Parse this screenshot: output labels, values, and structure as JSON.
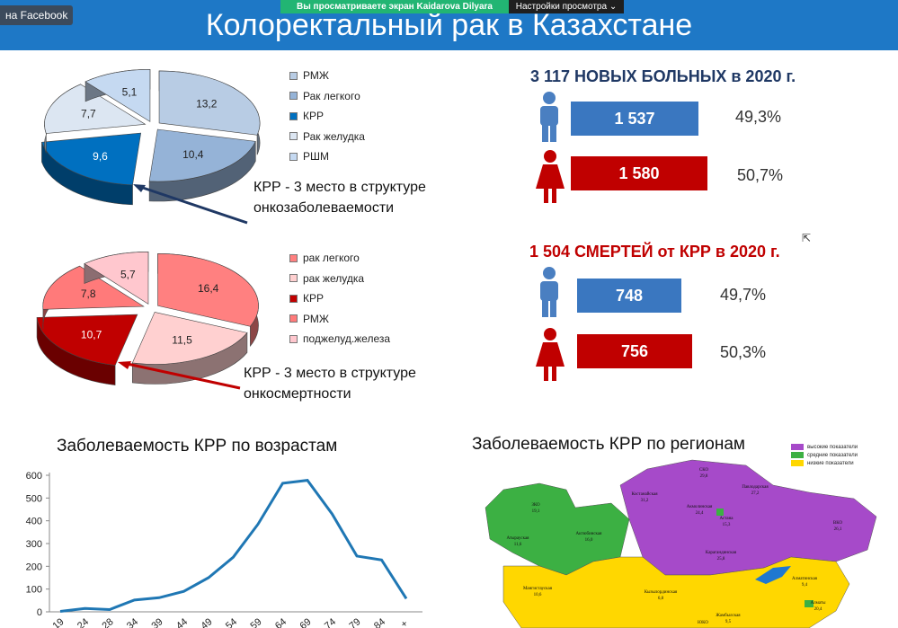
{
  "overlay": {
    "facebook_label": "на Facebook",
    "share_banner": "Вы просматриваете экран Kaidarova Dilyara",
    "view_settings": "Настройки просмотра"
  },
  "slide": {
    "title": "Колоректальный рак в Казахстане"
  },
  "incidence_pie": {
    "slices": [
      {
        "label": "РМЖ",
        "value": 13.2,
        "color": "#b8cce4"
      },
      {
        "label": "Рак легкого",
        "value": 10.4,
        "color": "#95b3d7"
      },
      {
        "label": "КРР",
        "value": 9.6,
        "color": "#0070c0"
      },
      {
        "label": "Рак желудка",
        "value": 7.7,
        "color": "#dce6f2"
      },
      {
        "label": "РШМ",
        "value": 5.1,
        "color": "#c5d9f1"
      }
    ],
    "note_line1": "КРР - 3 место в структуре",
    "note_line2": "онкозаболеваемости",
    "arrow_color": "#1f3864"
  },
  "mortality_pie": {
    "slices": [
      {
        "label": "рак легкого",
        "value": 16.4,
        "color": "#ff8080"
      },
      {
        "label": "рак желудка",
        "value": 11.5,
        "color": "#ffd0d0"
      },
      {
        "label": "КРР",
        "value": 10.7,
        "color": "#c00000"
      },
      {
        "label": "РМЖ",
        "value": 7.8,
        "color": "#ff7a7a"
      },
      {
        "label": "поджелуд.железа",
        "value": 5.7,
        "color": "#ffc7ce"
      }
    ],
    "note_line1": "КРР - 3 место в структуре",
    "note_line2": "онкосмертности",
    "arrow_color": "#c00000"
  },
  "new_cases": {
    "title": "3 117 НОВЫХ БОЛЬНЫХ в 2020 г.",
    "title_color": "#1f3864",
    "male_value": "1 537",
    "male_pct": "49,3%",
    "female_value": "1 580",
    "female_pct": "50,7%",
    "male_color": "#3a77c0",
    "female_color": "#c00000"
  },
  "deaths": {
    "title": "1 504 СМЕРТЕЙ от КРР в 2020 г.",
    "title_color": "#c00000",
    "male_value": "748",
    "male_pct": "49,7%",
    "female_value": "756",
    "female_pct": "50,3%"
  },
  "age_chart_title": "Заболеваемость КРР по возрастам",
  "region_map": {
    "title": "Заболеваемость КРР по регионам",
    "legend": [
      {
        "label": "высокие показатели",
        "color": "#a64ac9"
      },
      {
        "label": "средние показатели",
        "color": "#3cb043"
      },
      {
        "label": "низкие показатели",
        "color": "#ffd700"
      }
    ],
    "regions": [
      {
        "name": "СКО",
        "value": "29,8"
      },
      {
        "name": "Павлодарская",
        "value": "27,2"
      },
      {
        "name": "Костанайская",
        "value": "31,2"
      },
      {
        "name": "Акмолинская",
        "value": "24,4"
      },
      {
        "name": "Астана",
        "value": "15,3"
      },
      {
        "name": "ЗКО",
        "value": "19,1"
      },
      {
        "name": "Актюбинская",
        "value": "16,0"
      },
      {
        "name": "Атырауская",
        "value": "11,6"
      },
      {
        "name": "ВКО",
        "value": "26,1"
      },
      {
        "name": "Карагандинская",
        "value": "25,8"
      },
      {
        "name": "Мангистауская",
        "value": "10,6"
      },
      {
        "name": "Кызылординская",
        "value": "6,8"
      },
      {
        "name": "Жамбылская",
        "value": "9,5"
      },
      {
        "name": "Алматинская",
        "value": "9,4"
      },
      {
        "name": "Алматы",
        "value": "20,4"
      },
      {
        "name": "ЮКО",
        "value": ""
      }
    ]
  },
  "chart_data": {
    "type": "line",
    "title": "Заболеваемость КРР по возрастам",
    "ylim": [
      0,
      600
    ],
    "yticks": [
      0,
      100,
      200,
      300,
      400,
      500,
      600
    ],
    "x_tick_labels": [
      "19",
      "24",
      "28",
      "34",
      "39",
      "44",
      "49",
      "54",
      "59",
      "64",
      "69",
      "74",
      "79",
      "84",
      "+"
    ],
    "series": [
      {
        "values": [
          2,
          15,
          10,
          52,
          62,
          90,
          150,
          240,
          385,
          565,
          578,
          430,
          245,
          228,
          58
        ]
      }
    ],
    "line_color": "#1f77b4",
    "grid": false
  }
}
